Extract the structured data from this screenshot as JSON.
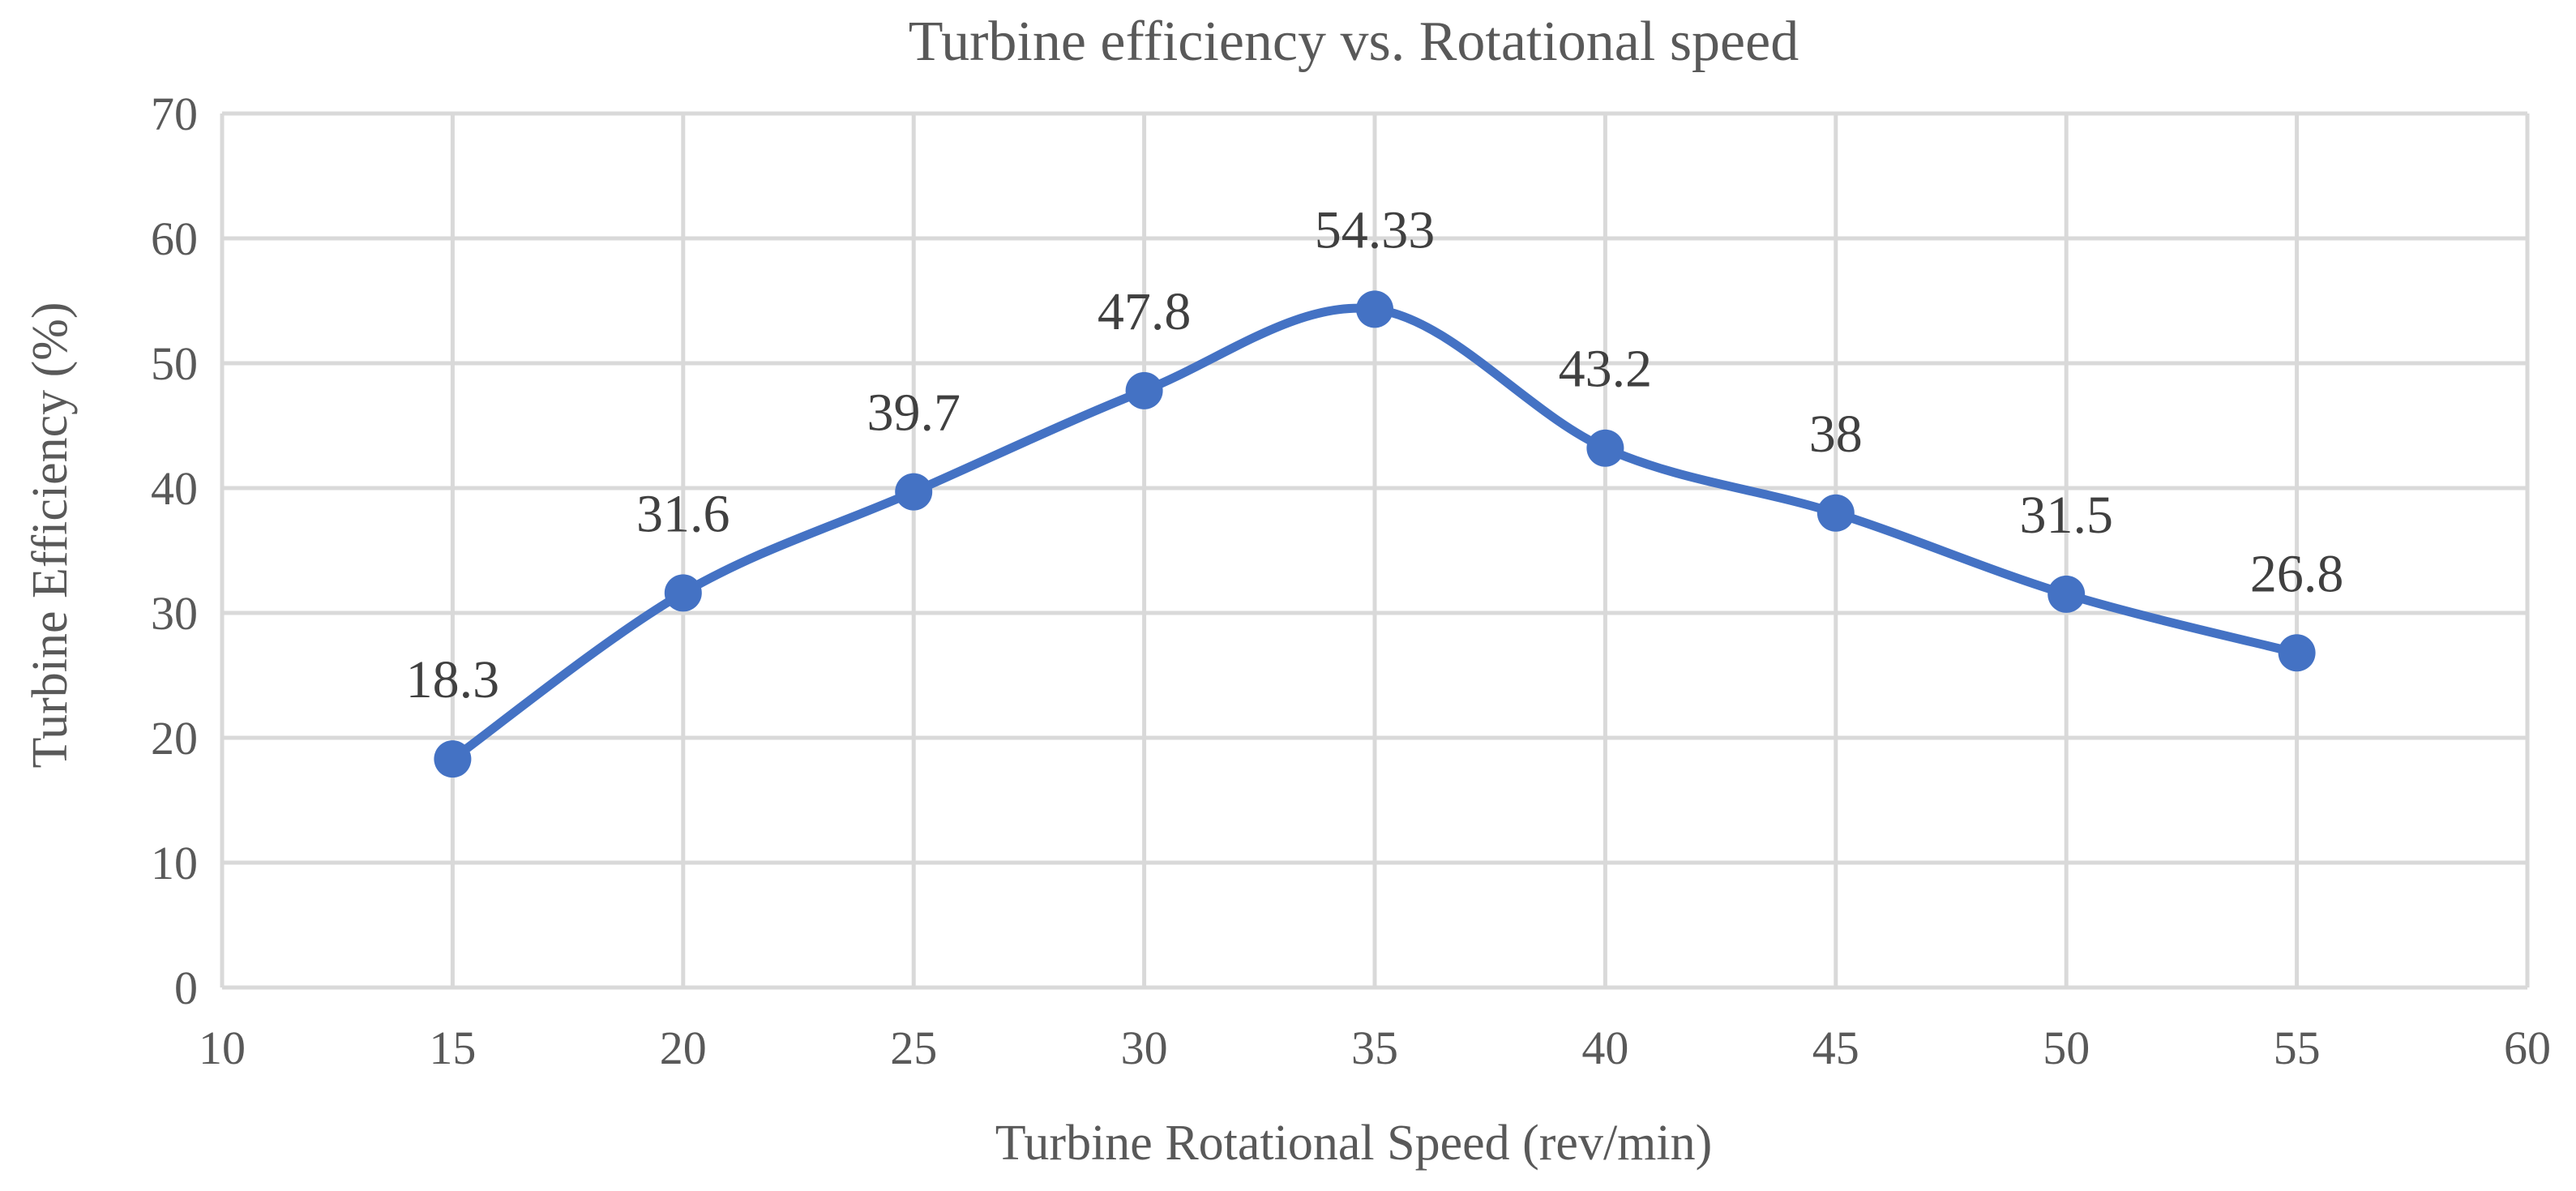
{
  "chart_data": {
    "type": "scatter",
    "title": "Turbine efficiency vs. Rotational speed",
    "xlabel": "Turbine Rotational Speed (rev/min)",
    "ylabel": "Turbine Efficiency (%)",
    "xlim": [
      10,
      60
    ],
    "ylim": [
      0,
      70
    ],
    "x_ticks": [
      10,
      15,
      20,
      25,
      30,
      35,
      40,
      45,
      50,
      55,
      60
    ],
    "y_ticks": [
      0,
      10,
      20,
      30,
      40,
      50,
      60,
      70
    ],
    "grid": true,
    "smooth_line": true,
    "series": [
      {
        "name": "Turbine efficiency",
        "color": "#4472c4",
        "x": [
          15,
          20,
          25,
          30,
          35,
          40,
          45,
          50,
          55
        ],
        "y": [
          18.3,
          31.6,
          39.7,
          47.8,
          54.33,
          43.2,
          38,
          31.5,
          26.8
        ],
        "labels": [
          "18.3",
          "31.6",
          "39.7",
          "47.8",
          "54.33",
          "43.2",
          "38",
          "31.5",
          "26.8"
        ]
      }
    ]
  }
}
